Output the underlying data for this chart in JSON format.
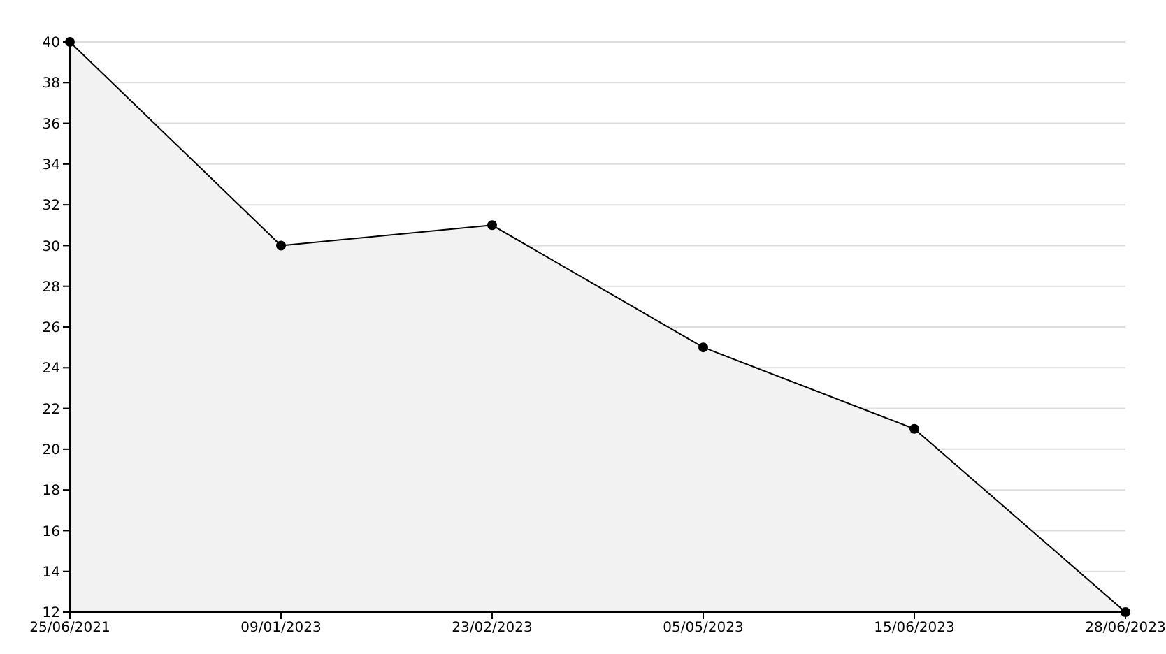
{
  "chart_data": {
    "type": "area",
    "categories": [
      "25/06/2021",
      "09/01/2023",
      "23/02/2023",
      "05/05/2023",
      "15/06/2023",
      "28/06/2023"
    ],
    "series": [
      {
        "color": "#000000",
        "values": [
          40,
          30,
          31,
          25,
          21,
          12
        ]
      }
    ],
    "ylim": [
      12,
      40
    ],
    "yticks": [
      12,
      14,
      16,
      18,
      20,
      22,
      24,
      26,
      28,
      30,
      32,
      34,
      36,
      38,
      40
    ],
    "grid": "y",
    "marker": "circle",
    "line_style": "solid"
  }
}
